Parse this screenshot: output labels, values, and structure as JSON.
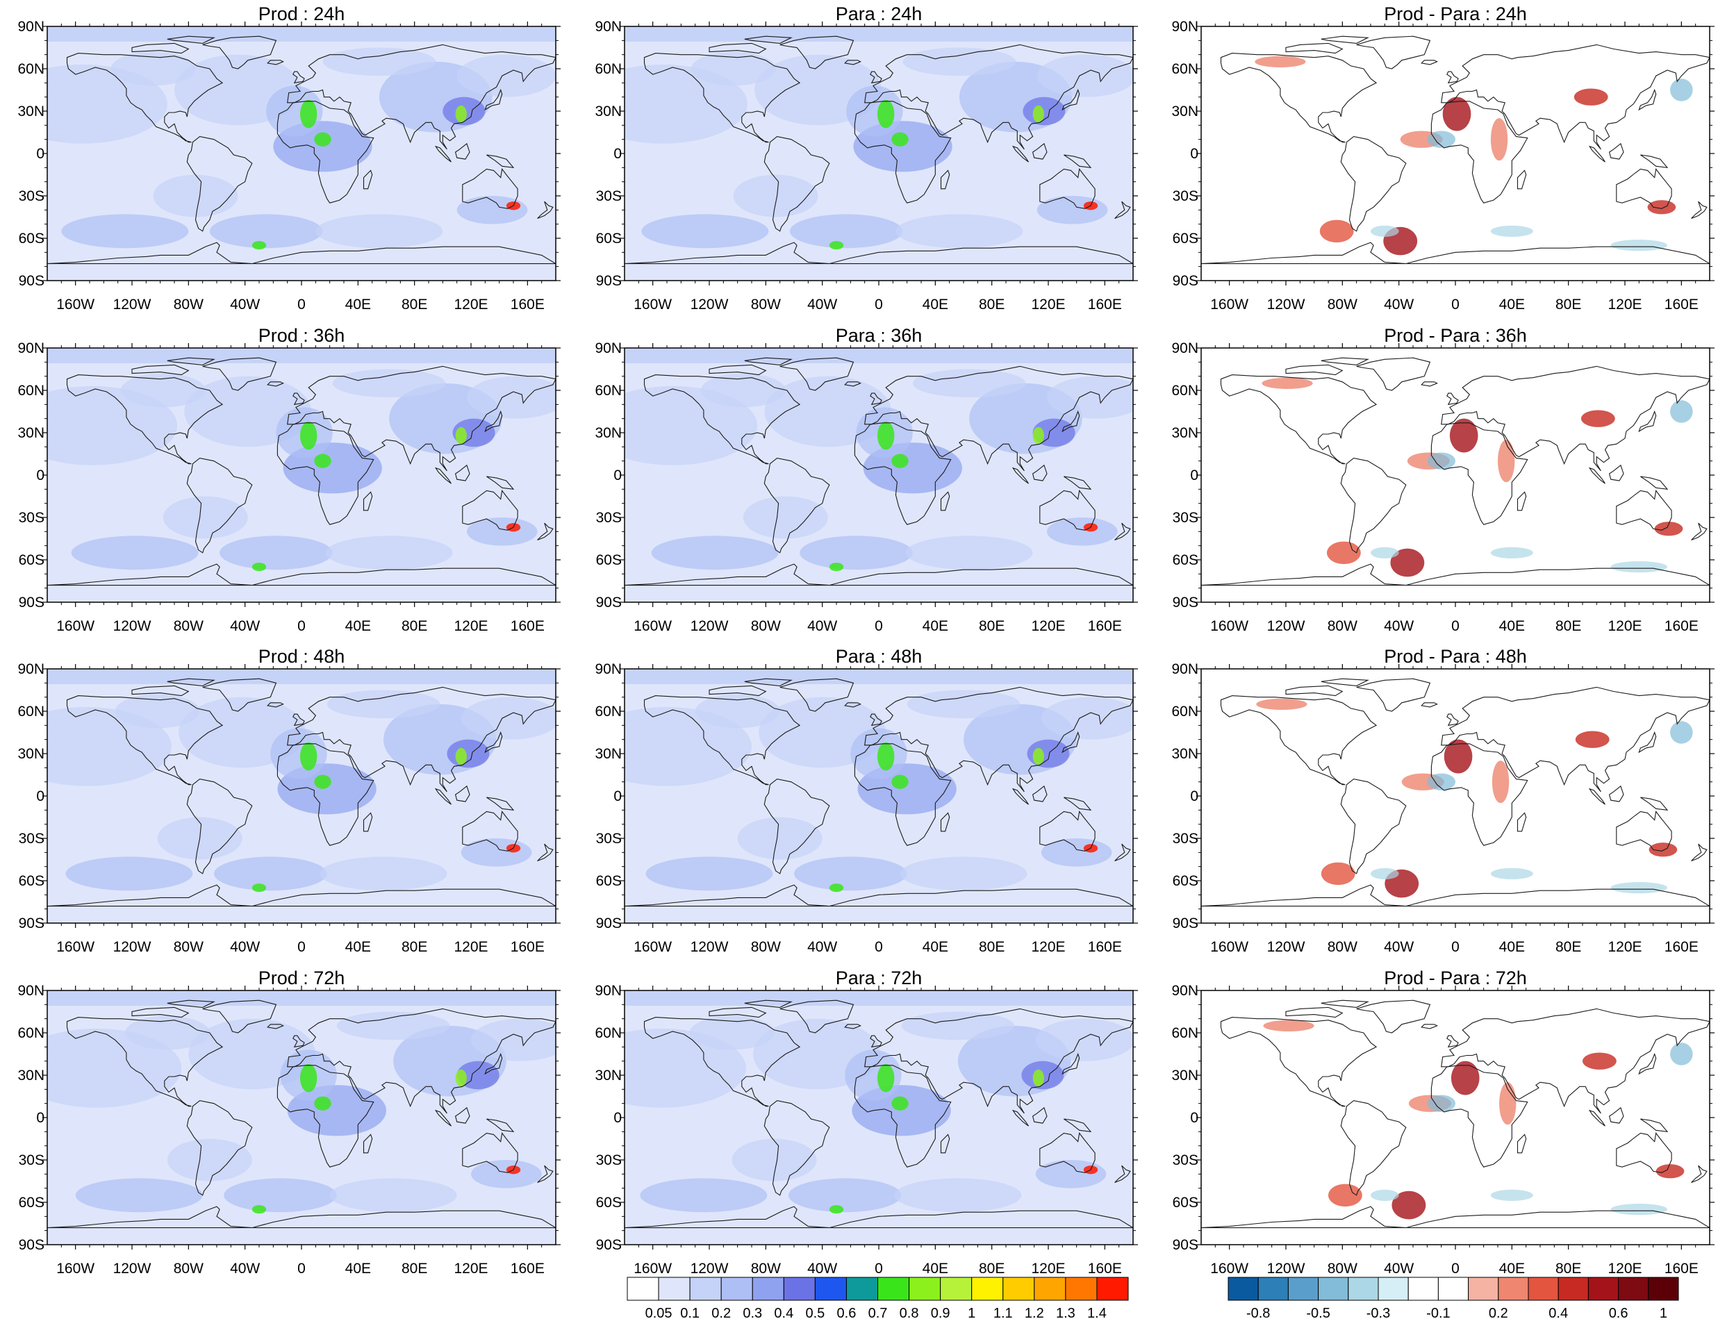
{
  "panels": [
    [
      {
        "title": "Prod : 24h",
        "kind": "abs"
      },
      {
        "title": "Para : 24h",
        "kind": "abs"
      },
      {
        "title": "Prod - Para : 24h",
        "kind": "diff"
      }
    ],
    [
      {
        "title": "Prod : 36h",
        "kind": "abs"
      },
      {
        "title": "Para : 36h",
        "kind": "abs"
      },
      {
        "title": "Prod - Para : 36h",
        "kind": "diff"
      }
    ],
    [
      {
        "title": "Prod : 48h",
        "kind": "abs"
      },
      {
        "title": "Para : 48h",
        "kind": "abs"
      },
      {
        "title": "Prod - Para : 48h",
        "kind": "diff"
      }
    ],
    [
      {
        "title": "Prod : 72h",
        "kind": "abs"
      },
      {
        "title": "Para : 72h",
        "kind": "abs"
      },
      {
        "title": "Prod - Para : 72h",
        "kind": "diff"
      }
    ]
  ],
  "axes": {
    "lat_ticks": [
      "90N",
      "60N",
      "30N",
      "0",
      "30S",
      "60S",
      "90S"
    ],
    "lon_ticks": [
      "160W",
      "120W",
      "80W",
      "40W",
      "0",
      "40E",
      "80E",
      "120E",
      "160E"
    ],
    "lat_range": [
      -90,
      90
    ],
    "lon_range": [
      -180,
      180
    ]
  },
  "colorbars": {
    "absolute": {
      "labels": [
        "0.05",
        "0.1",
        "0.2",
        "0.3",
        "0.4",
        "0.5",
        "0.6",
        "0.7",
        "0.8",
        "0.9",
        "1",
        "1.1",
        "1.2",
        "1.3",
        "1.4"
      ],
      "colors": [
        "#ffffff",
        "#dfe6fb",
        "#c6d3f8",
        "#aebff5",
        "#8fa2f0",
        "#6a72e6",
        "#1e57f0",
        "#0e9a9a",
        "#39e51a",
        "#8cf01c",
        "#b6f23a",
        "#fff200",
        "#ffcc00",
        "#ffa500",
        "#ff7700",
        "#ff1a00"
      ]
    },
    "difference": {
      "labels": [
        "-0.8",
        "-0.5",
        "-0.3",
        "-0.1",
        "0.2",
        "0.4",
        "0.6",
        "1"
      ],
      "colors": [
        "#0a5aa0",
        "#2d7fb8",
        "#5a9fcc",
        "#82bcd8",
        "#acd7e6",
        "#d6eef6",
        "#ffffff",
        "#ffffff",
        "#f5b3a4",
        "#ee8670",
        "#e3553f",
        "#c72a22",
        "#a5131a",
        "#7e0a12",
        "#5c0008"
      ]
    }
  },
  "chart_data": {
    "type": "heatmap",
    "layout": "4 rows x 3 columns of global maps",
    "rows": [
      "24h",
      "36h",
      "48h",
      "72h"
    ],
    "columns": [
      "Prod",
      "Para",
      "Prod - Para"
    ],
    "absolute_levels": [
      0.05,
      0.1,
      0.2,
      0.3,
      0.4,
      0.5,
      0.6,
      0.7,
      0.8,
      0.9,
      1,
      1.1,
      1.2,
      1.3,
      1.4
    ],
    "difference_levels": [
      -0.8,
      -0.5,
      -0.3,
      -0.1,
      0.2,
      0.4,
      0.6,
      1
    ],
    "lat_range": [
      -90,
      90
    ],
    "lon_range": [
      -180,
      180
    ]
  }
}
